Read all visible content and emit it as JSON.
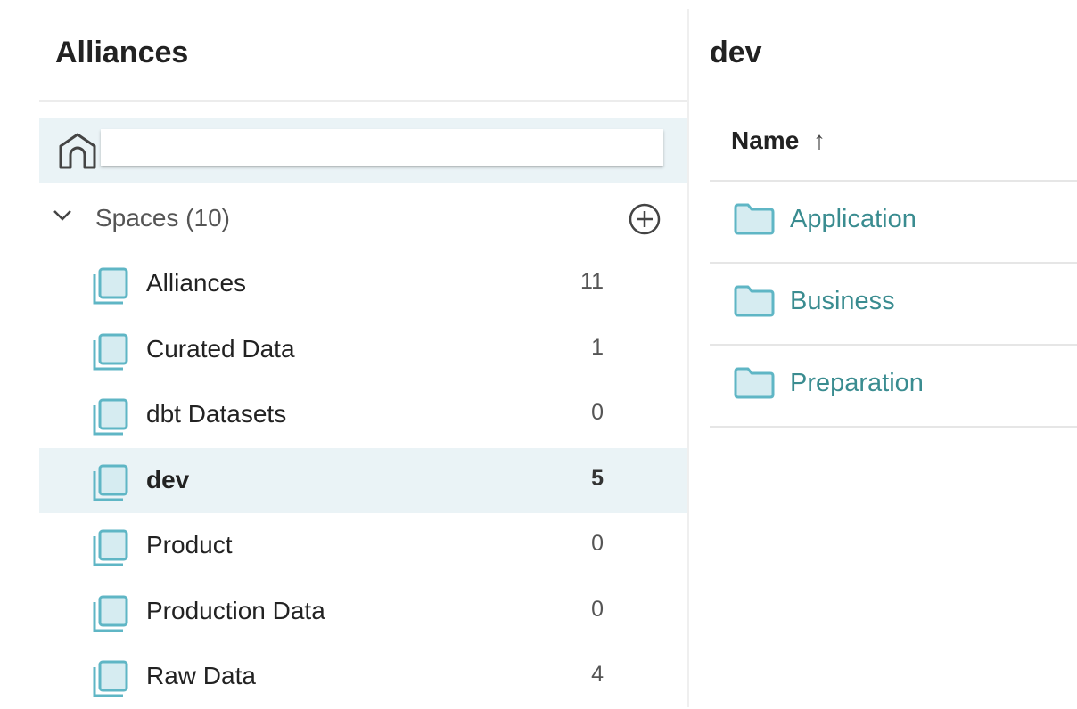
{
  "left_panel": {
    "title": "Alliances",
    "spaces_label": "Spaces (10)",
    "spaces": [
      {
        "label": "Alliances",
        "count": "11"
      },
      {
        "label": "Curated Data",
        "count": "1"
      },
      {
        "label": "dbt Datasets",
        "count": "0"
      },
      {
        "label": "dev",
        "count": "5",
        "selected": true
      },
      {
        "label": "Product",
        "count": "0"
      },
      {
        "label": "Production Data",
        "count": "0"
      },
      {
        "label": "Raw Data",
        "count": "4"
      }
    ]
  },
  "right_panel": {
    "title": "dev",
    "column_header": "Name",
    "sort_icon": "↑",
    "folders": [
      {
        "label": "Application"
      },
      {
        "label": "Business"
      },
      {
        "label": "Preparation"
      }
    ]
  },
  "colors": {
    "accent": "#5fb6c5",
    "link": "#3a8c90",
    "selected_bg": "#eaf3f6"
  }
}
